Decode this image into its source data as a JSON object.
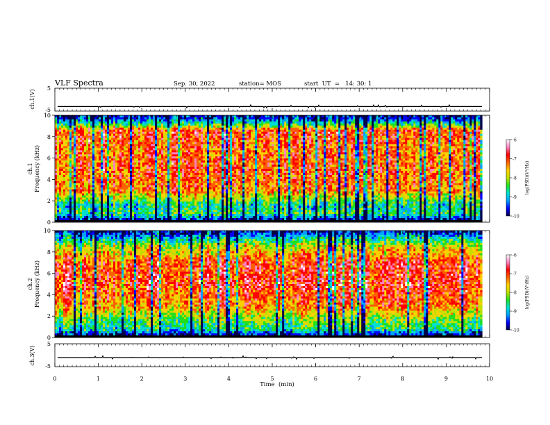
{
  "header": {
    "title": "VLF Spectra",
    "date": "Sep. 30, 2022",
    "station": "station= MOS",
    "start": "start  UT  =   14: 30: 1"
  },
  "chart_data": [
    {
      "type": "line",
      "name": "ch1-waveform",
      "ylabel": "ch.1(V)",
      "ylim": [
        -5,
        5
      ],
      "yticks": [
        "5",
        "-5"
      ],
      "xlim": [
        0,
        10
      ],
      "values_description": "near-constant trace slightly above -3 V with small spikes",
      "baseline": -3.0
    },
    {
      "type": "heatmap",
      "name": "ch1-spectrogram",
      "ylabel": "ch.1\nFrequency (kHz)",
      "ylim": [
        0,
        10
      ],
      "yticks": [
        "0",
        "2",
        "4",
        "6",
        "8",
        "10"
      ],
      "xlim": [
        0,
        9.83
      ],
      "colorbar": {
        "label": "log(PSD)(V²/Hz)",
        "range": [
          -10,
          -6
        ],
        "ticks": [
          "-6",
          "-7",
          "-8",
          "-9",
          "-10"
        ]
      },
      "typical_log_psd": [
        {
          "freq_khz": 0.1,
          "value": -10
        },
        {
          "freq_khz": 0.8,
          "value": -8.5
        },
        {
          "freq_khz": 1.6,
          "value": -8.7
        },
        {
          "freq_khz": 3,
          "value": -7.3
        },
        {
          "freq_khz": 5,
          "value": -7.1
        },
        {
          "freq_khz": 7,
          "value": -7.2
        },
        {
          "freq_khz": 8.6,
          "value": -7.0
        },
        {
          "freq_khz": 9.2,
          "value": -8.6
        },
        {
          "freq_khz": 9.8,
          "value": -9.6
        }
      ]
    },
    {
      "type": "heatmap",
      "name": "ch2-spectrogram",
      "ylabel": "ch.2\nFrequency (kHz)",
      "ylim": [
        0,
        10
      ],
      "yticks": [
        "0",
        "2",
        "4",
        "6",
        "8",
        "10"
      ],
      "xlim": [
        0,
        9.83
      ],
      "colorbar": {
        "label": "log(PSD)(V²/Hz)",
        "range": [
          -10,
          -6
        ],
        "ticks": [
          "-6",
          "-7",
          "-8",
          "-9",
          "-10"
        ]
      },
      "typical_log_psd": [
        {
          "freq_khz": 0.1,
          "value": -10
        },
        {
          "freq_khz": 0.8,
          "value": -8.6
        },
        {
          "freq_khz": 1.5,
          "value": -8.4
        },
        {
          "freq_khz": 3,
          "value": -7.3
        },
        {
          "freq_khz": 5,
          "value": -6.9
        },
        {
          "freq_khz": 7,
          "value": -7.0
        },
        {
          "freq_khz": 8.5,
          "value": -7.9
        },
        {
          "freq_khz": 9.3,
          "value": -8.9
        },
        {
          "freq_khz": 9.9,
          "value": -9.7
        }
      ]
    },
    {
      "type": "line",
      "name": "ch3-waveform",
      "ylabel": "ch.3(V)",
      "ylim": [
        -5,
        5
      ],
      "yticks": [
        "5",
        "-5"
      ],
      "xlim": [
        0,
        10
      ],
      "values_description": "near-constant trace around -1 V with small spikes",
      "baseline": -1.0
    }
  ],
  "xaxis": {
    "label": "Time  (min)",
    "ticks": [
      "0",
      "1",
      "2",
      "3",
      "4",
      "5",
      "6",
      "7",
      "8",
      "9",
      "10"
    ],
    "range": [
      0,
      10
    ]
  },
  "colors": {
    "colormap": [
      "#00004a",
      "#0000ff",
      "#00a0ff",
      "#00e0d0",
      "#20e020",
      "#c0e000",
      "#ffd000",
      "#ff6000",
      "#ff0000",
      "#ff80c0",
      "#ffffff"
    ]
  }
}
